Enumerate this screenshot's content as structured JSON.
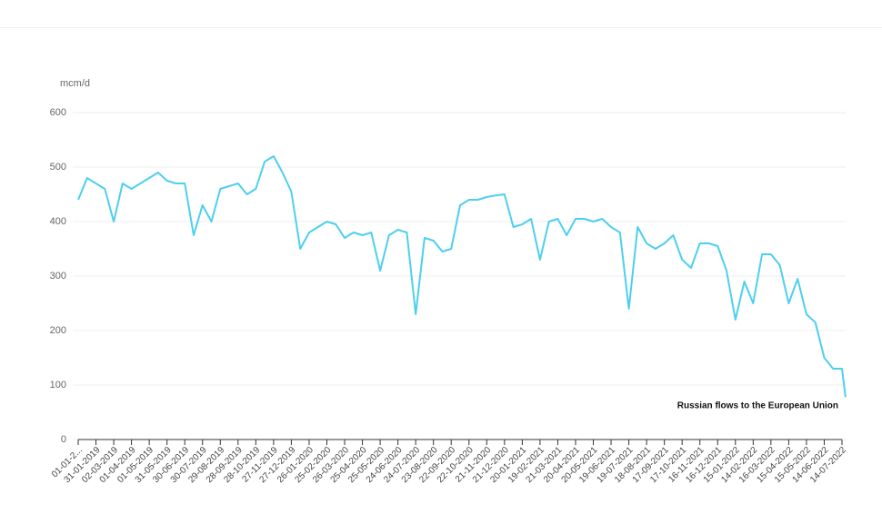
{
  "chart_data": {
    "type": "line",
    "y_label": "mcm/d",
    "x": [
      "01-01-2019",
      "16-01-2019",
      "31-01-2019",
      "15-02-2019",
      "02-03-2019",
      "17-03-2019",
      "01-04-2019",
      "16-04-2019",
      "01-05-2019",
      "16-05-2019",
      "31-05-2019",
      "15-06-2019",
      "30-06-2019",
      "15-07-2019",
      "30-07-2019",
      "14-08-2019",
      "29-08-2019",
      "13-09-2019",
      "28-09-2019",
      "13-10-2019",
      "28-10-2019",
      "12-11-2019",
      "27-11-2019",
      "12-12-2019",
      "27-12-2019",
      "11-01-2020",
      "26-01-2020",
      "10-02-2020",
      "25-02-2020",
      "11-03-2020",
      "26-03-2020",
      "10-04-2020",
      "25-04-2020",
      "10-05-2020",
      "25-05-2020",
      "09-06-2020",
      "24-06-2020",
      "09-07-2020",
      "24-07-2020",
      "08-08-2020",
      "23-08-2020",
      "07-09-2020",
      "22-09-2020",
      "07-10-2020",
      "22-10-2020",
      "06-11-2020",
      "21-11-2020",
      "06-12-2020",
      "21-12-2020",
      "05-01-2021",
      "20-01-2021",
      "04-02-2021",
      "19-02-2021",
      "06-03-2021",
      "21-03-2021",
      "05-04-2021",
      "20-04-2021",
      "05-05-2021",
      "20-05-2021",
      "04-06-2021",
      "19-06-2021",
      "04-07-2021",
      "19-07-2021",
      "03-08-2021",
      "18-08-2021",
      "02-09-2021",
      "17-09-2021",
      "02-10-2021",
      "17-10-2021",
      "01-11-2021",
      "16-11-2021",
      "01-12-2021",
      "16-12-2021",
      "31-12-2021",
      "15-01-2022",
      "30-01-2022",
      "14-02-2022",
      "01-03-2022",
      "16-03-2022",
      "31-03-2022",
      "15-04-2022",
      "30-04-2022",
      "15-05-2022",
      "30-05-2022",
      "14-06-2022",
      "29-06-2022",
      "14-07-2022",
      "20-07-2022"
    ],
    "series": [
      {
        "name": "Russian flows to the European Union",
        "color": "#4dcfef",
        "values": [
          440,
          480,
          470,
          460,
          400,
          470,
          460,
          470,
          480,
          490,
          475,
          470,
          470,
          375,
          430,
          400,
          460,
          465,
          470,
          450,
          460,
          510,
          520,
          490,
          455,
          350,
          380,
          390,
          400,
          395,
          370,
          380,
          375,
          380,
          310,
          375,
          385,
          380,
          230,
          370,
          365,
          345,
          350,
          430,
          440,
          440,
          445,
          448,
          450,
          390,
          395,
          405,
          330,
          400,
          405,
          375,
          405,
          405,
          400,
          405,
          390,
          380,
          240,
          390,
          360,
          350,
          360,
          375,
          330,
          315,
          360,
          360,
          355,
          310,
          220,
          290,
          250,
          340,
          340,
          320,
          250,
          295,
          230,
          215,
          150,
          130,
          130,
          78
        ]
      }
    ],
    "xlim": [
      "01-01-2019",
      "20-07-2022"
    ],
    "xticks": [
      {
        "value": "01-01-2019",
        "label": "01-01-2..."
      },
      "31-01-2019",
      "02-03-2019",
      "01-04-2019",
      "01-05-2019",
      "31-05-2019",
      "30-06-2019",
      "30-07-2019",
      "29-08-2019",
      "28-09-2019",
      "28-10-2019",
      "27-11-2019",
      "27-12-2019",
      "26-01-2020",
      "25-02-2020",
      "26-03-2020",
      "25-04-2020",
      "25-05-2020",
      "24-06-2020",
      "24-07-2020",
      "23-08-2020",
      "22-09-2020",
      "22-10-2020",
      "21-11-2020",
      "21-12-2020",
      "20-01-2021",
      "19-02-2021",
      "21-03-2021",
      "20-04-2021",
      "20-05-2021",
      "19-06-2021",
      "19-07-2021",
      "18-08-2021",
      "17-09-2021",
      "17-10-2021",
      "16-11-2021",
      "16-12-2021",
      "15-01-2022",
      "14-02-2022",
      "16-03-2022",
      "15-04-2022",
      "15-05-2022",
      "14-06-2022",
      "14-07-2022"
    ],
    "ylim": [
      0,
      600
    ],
    "yticks": [
      0,
      100,
      200,
      300,
      400,
      500,
      600
    ],
    "grid": true
  }
}
